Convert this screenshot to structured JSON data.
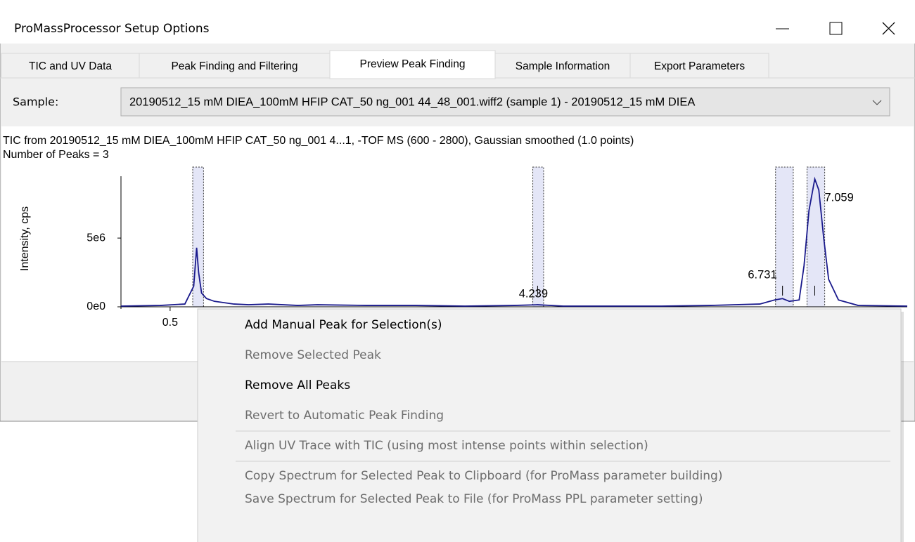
{
  "window": {
    "title": "ProMassProcessor Setup Options"
  },
  "tabs": {
    "labels": [
      "TIC and UV Data",
      "Peak Finding and Filtering",
      "Preview Peak Finding",
      "Sample Information",
      "Export Parameters"
    ],
    "active": 2
  },
  "sample": {
    "label": "Sample:",
    "value": "20190512_15 mM DIEA_100mM HFIP CAT_50 ng_001 44_48_001.wiff2 (sample 1) - 20190512_15 mM DIEA"
  },
  "info": {
    "line1": "TIC from 20190512_15 mM DIEA_100mM HFIP CAT_50 ng_001 4...1, -TOF MS (600 - 2800), Gaussian smoothed (1.0 points)",
    "line2": "Number of Peaks = 3"
  },
  "chart": {
    "type": "line",
    "y_label": "Intensity, cps",
    "color": "#1a1a8c",
    "xlim": [
      0,
      8
    ],
    "ylim": [
      0,
      9500000
    ],
    "xticks": [
      0.5
    ],
    "yticks": [
      {
        "value": 5000000,
        "label": "5e6"
      },
      {
        "value": 0,
        "label": "0e0"
      }
    ],
    "x": [
      0,
      0.4,
      0.65,
      0.74,
      0.77,
      0.79,
      0.82,
      0.87,
      0.95,
      1.05,
      1.15,
      1.3,
      1.5,
      1.8,
      2.0,
      2.5,
      3.0,
      3.5,
      4.0,
      4.239,
      4.5,
      5.0,
      5.5,
      6.0,
      6.5,
      6.65,
      6.731,
      6.8,
      6.9,
      6.95,
      7.0,
      7.059,
      7.1,
      7.15,
      7.2,
      7.3,
      7.5,
      8.0
    ],
    "y": [
      50000,
      100000,
      200000,
      1500000,
      4300000,
      2500000,
      1000000,
      600000,
      400000,
      300000,
      200000,
      150000,
      200000,
      100000,
      150000,
      100000,
      100000,
      50000,
      100000,
      150000,
      50000,
      50000,
      50000,
      100000,
      200000,
      500000,
      600000,
      400000,
      500000,
      3000000,
      7000000,
      9300000,
      8500000,
      5000000,
      2000000,
      500000,
      100000,
      50000
    ],
    "selections": [
      [
        0.73,
        0.84
      ],
      [
        4.19,
        4.3
      ],
      [
        6.66,
        6.84
      ],
      [
        6.98,
        7.16
      ]
    ],
    "peaks": [
      4.239,
      6.731,
      7.059
    ]
  },
  "menu": {
    "items": [
      {
        "label": "Add Manual Peak for Selection(s)",
        "enabled": true
      },
      {
        "label": "Remove Selected Peak",
        "enabled": false
      },
      {
        "label": "Remove All Peaks",
        "enabled": true
      },
      {
        "label": "Revert to Automatic Peak Finding",
        "enabled": false
      },
      {
        "label": "Align UV Trace with TIC (using most intense points within selection)",
        "enabled": false
      },
      {
        "label": "Copy Spectrum for Selected Peak to Clipboard (for ProMass parameter building)",
        "enabled": false
      },
      {
        "label": "Save Spectrum for Selected Peak to File (for ProMass PPL parameter setting)",
        "enabled": false
      }
    ]
  }
}
